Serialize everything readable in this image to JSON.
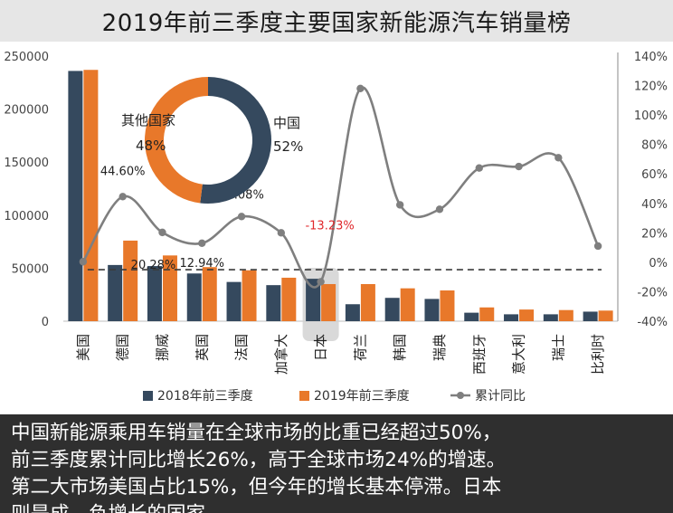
{
  "title": "2019年前三季度主要国家新能源汽车销量榜",
  "colors": {
    "series2018": "#35495e",
    "series2019": "#e8782a",
    "yoy": "#7f7f7f",
    "dash": "#3a3a3a",
    "negative_label": "#e0282c",
    "china": "#35495e",
    "others": "#e8782a"
  },
  "chart_data": {
    "type": "bar",
    "categories": [
      "美国",
      "德国",
      "挪威",
      "英国",
      "法国",
      "加拿大",
      "日本",
      "荷兰",
      "韩国",
      "瑞典",
      "西班牙",
      "意大利",
      "瑞士",
      "比利时"
    ],
    "series": [
      {
        "name": "2018年前三季度",
        "type": "bar",
        "axis": "left",
        "values": [
          236000,
          53000,
          52000,
          45000,
          37000,
          34000,
          40000,
          16000,
          22000,
          21000,
          8000,
          6500,
          6500,
          9000
        ]
      },
      {
        "name": "2019年前三季度",
        "type": "bar",
        "axis": "left",
        "values": [
          237000,
          76000,
          62000,
          51000,
          48000,
          41000,
          35000,
          35000,
          31000,
          29000,
          13000,
          11000,
          10500,
          10000
        ]
      },
      {
        "name": "累计同比",
        "type": "line",
        "axis": "right",
        "values": [
          0.4,
          44.6,
          20.28,
          12.94,
          31.08,
          20,
          -13.23,
          118,
          39,
          36,
          64,
          65,
          71,
          11
        ]
      }
    ],
    "point_labels": [
      {
        "index": 1,
        "text": "44.60%"
      },
      {
        "index": 2,
        "text": "20.28%"
      },
      {
        "index": 3,
        "text": "12.94%"
      },
      {
        "index": 4,
        "text": "31.08%"
      },
      {
        "index": 6,
        "text": "-13.23%",
        "negative": true
      }
    ],
    "y_left": {
      "min": 0,
      "max": 250000,
      "ticks": [
        0,
        50000,
        100000,
        150000,
        200000,
        250000
      ]
    },
    "y_right": {
      "min": -40,
      "max": 140,
      "ticks": [
        "-40%",
        "-20%",
        "0%",
        "20%",
        "40%",
        "60%",
        "80%",
        "100%",
        "120%",
        "140%"
      ],
      "values": [
        -40,
        -20,
        0,
        20,
        40,
        60,
        80,
        100,
        120,
        140
      ]
    },
    "highlight_category": "日本",
    "legend_position": "bottom",
    "pie": {
      "type": "pie",
      "slices": [
        {
          "label": "中国",
          "value": 52,
          "text": "52%"
        },
        {
          "label": "其他国家",
          "value": 48,
          "text": "48%"
        }
      ]
    }
  },
  "caption": "中国新能源乘用车销量在全球市场的比重已经超过50%，\n前三季度累计同比增长26%，高于全球市场24%的增速。\n第二大市场美国占比15%，但今年的增长基本停滞。日本\n则是成…负增长的国家"
}
